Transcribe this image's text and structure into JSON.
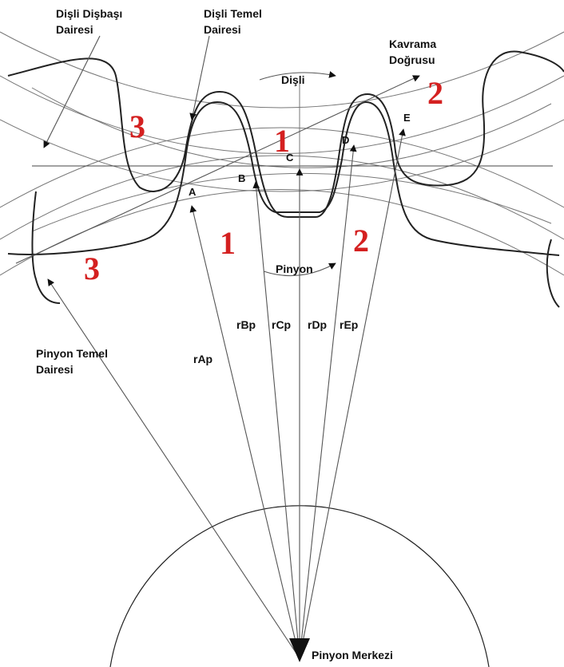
{
  "labels": [
    {
      "lines": [
        "Dişli Dişbaşı",
        "Dairesi"
      ]
    },
    {
      "lines": [
        "Dişli Temel",
        "Dairesi"
      ]
    },
    {
      "lines": [
        "Kavrama",
        "Doğrusu"
      ]
    },
    {
      "lines": [
        "Pinyon Temel",
        "Dairesi"
      ]
    }
  ],
  "rotation": [
    "Dişli",
    "Pinyon"
  ],
  "points": [
    "A",
    "B",
    "C",
    "D",
    "E"
  ],
  "radii": [
    "rAp",
    "rBp",
    "rCp",
    "rDp",
    "rEp"
  ],
  "zones": [
    "3",
    "1",
    "2",
    "1",
    "2",
    "3"
  ],
  "center": "Pinyon Merkezi"
}
